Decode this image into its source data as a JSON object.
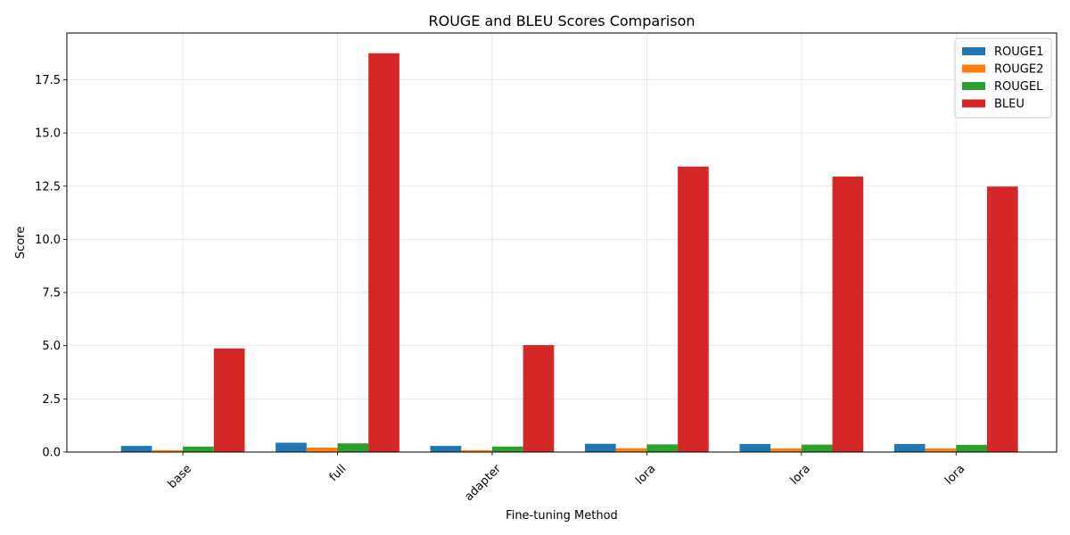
{
  "chart_data": {
    "type": "bar",
    "title": "ROUGE and BLEU Scores Comparison",
    "xlabel": "Fine-tuning Method",
    "ylabel": "Score",
    "categories": [
      "base",
      "full",
      "adapter",
      "lora",
      "lora",
      "lora"
    ],
    "series": [
      {
        "name": "ROUGE1",
        "color": "#1f77b4",
        "values": [
          0.29,
          0.44,
          0.29,
          0.39,
          0.38,
          0.38
        ]
      },
      {
        "name": "ROUGE2",
        "color": "#ff7f0e",
        "values": [
          0.09,
          0.21,
          0.09,
          0.18,
          0.17,
          0.17
        ]
      },
      {
        "name": "ROUGEL",
        "color": "#2ca02c",
        "values": [
          0.26,
          0.41,
          0.26,
          0.36,
          0.35,
          0.34
        ]
      },
      {
        "name": "BLEU",
        "color": "#d62728",
        "values": [
          4.87,
          18.75,
          5.03,
          13.42,
          12.95,
          12.48
        ]
      }
    ],
    "ylim": [
      0,
      19.7
    ],
    "yticks": [
      0.0,
      2.5,
      5.0,
      7.5,
      10.0,
      12.5,
      15.0,
      17.5
    ],
    "ytick_labels": [
      "0.0",
      "2.5",
      "5.0",
      "7.5",
      "10.0",
      "12.5",
      "15.0",
      "17.5"
    ],
    "grid": true,
    "legend_position": "top-right"
  }
}
